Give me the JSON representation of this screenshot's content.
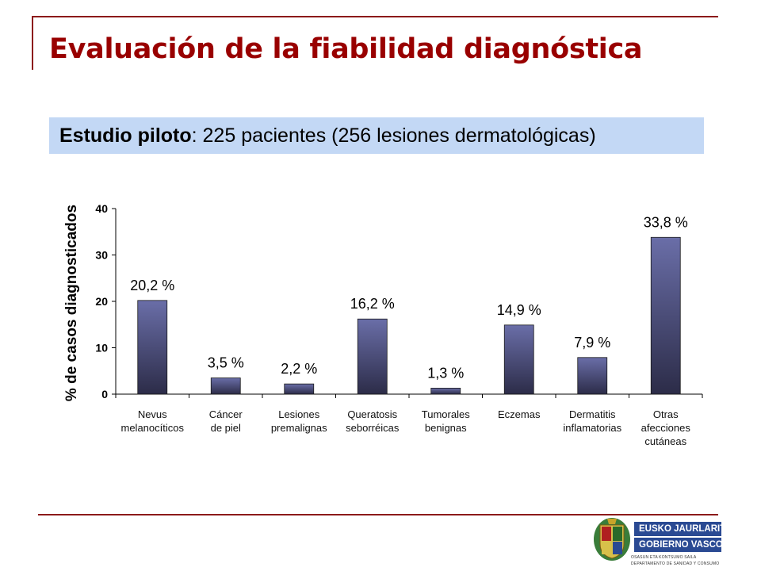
{
  "slide": {
    "title": "Evaluación de la fiabilidad diagnóstica",
    "subtitle_bold": "Estudio piloto",
    "subtitle_rest": ": 225 pacientes (256 lesiones dermatológicas)"
  },
  "chart_data": {
    "type": "bar",
    "ylabel": "% de casos diagnosticados",
    "ylim": [
      0,
      40
    ],
    "yticks": [
      0,
      10,
      20,
      30,
      40
    ],
    "categories": [
      [
        "Nevus",
        "melanocíticos"
      ],
      [
        "Cáncer",
        "de piel"
      ],
      [
        "Lesiones",
        "premalignas"
      ],
      [
        "Queratosis",
        "seborréicas"
      ],
      [
        "Tumorales",
        "benignas"
      ],
      [
        "Eczemas"
      ],
      [
        "Dermatitis",
        "inflamatorias"
      ],
      [
        "Otras",
        "afecciones",
        "cutáneas"
      ]
    ],
    "values": [
      20.2,
      3.5,
      2.2,
      16.2,
      1.3,
      14.9,
      7.9,
      33.8
    ],
    "data_labels": [
      "20,2 %",
      "3,5 %",
      "2,2 %",
      "16,2 %",
      "1,3 %",
      "14,9 %",
      "7,9 %",
      "33,8 %"
    ],
    "bar_color": "#55598f",
    "grid": false,
    "legend": "none"
  },
  "logo": {
    "line1": "EUSKO JAURLARITZA",
    "line2": "GOBIERNO VASCO",
    "small1": "OSASUN ETA KONTSUMO SAILA",
    "small2": "DEPARTAMENTO DE SANIDAD Y CONSUMO"
  }
}
